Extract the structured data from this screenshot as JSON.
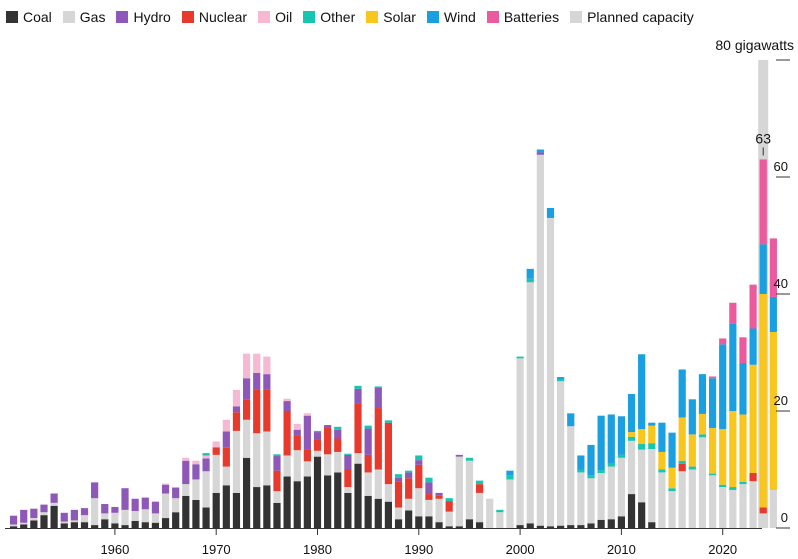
{
  "legend": [
    {
      "key": "coal",
      "label": "Coal",
      "color": "#333333"
    },
    {
      "key": "gas",
      "label": "Gas",
      "color": "#d6d6d6"
    },
    {
      "key": "hydro",
      "label": "Hydro",
      "color": "#8e58b8"
    },
    {
      "key": "nuclear",
      "label": "Nuclear",
      "color": "#e8392d"
    },
    {
      "key": "oil",
      "label": "Oil",
      "color": "#f6b8d3"
    },
    {
      "key": "other",
      "label": "Other",
      "color": "#16c6b0"
    },
    {
      "key": "solar",
      "label": "Solar",
      "color": "#f8c61d"
    },
    {
      "key": "wind",
      "label": "Wind",
      "color": "#1a9fe0"
    },
    {
      "key": "batteries",
      "label": "Batteries",
      "color": "#ea5a9c"
    },
    {
      "key": "planned",
      "label": "Planned capacity",
      "color": "#d6d6d6"
    }
  ],
  "chart_data": {
    "type": "bar",
    "stacked": true,
    "unit_label": "80 gigawatts",
    "annotation": {
      "label": "63",
      "year": 2024
    },
    "y_ticks": [
      "0",
      "20",
      "40",
      "60"
    ],
    "x_ticks": [
      "1960",
      "1970",
      "1980",
      "1990",
      "2000",
      "2010",
      "2020"
    ],
    "ylim": [
      0,
      80
    ],
    "xlim": [
      1950,
      2025
    ],
    "grid": false,
    "legend_position": "top",
    "series_order": [
      "coal",
      "gas",
      "nuclear",
      "hydro",
      "oil",
      "other",
      "solar",
      "wind",
      "batteries"
    ],
    "colors": {
      "coal": "#333333",
      "gas": "#d6d6d6",
      "hydro": "#8e58b8",
      "nuclear": "#e8392d",
      "oil": "#f6b8d3",
      "other": "#16c6b0",
      "solar": "#f8c61d",
      "wind": "#1a9fe0",
      "batteries": "#ea5a9c",
      "planned": "#d6d6d6"
    },
    "years": [
      {
        "year": 1950,
        "coal": 0.3,
        "gas": 0.3,
        "hydro": 1.5
      },
      {
        "year": 1951,
        "coal": 0.6,
        "gas": 0.3,
        "hydro": 2.2
      },
      {
        "year": 1952,
        "coal": 1.3,
        "gas": 0.4,
        "hydro": 1.6
      },
      {
        "year": 1953,
        "coal": 2.2,
        "gas": 0.5,
        "hydro": 1.3
      },
      {
        "year": 1954,
        "coal": 3.8,
        "gas": 0.5,
        "hydro": 1.6
      },
      {
        "year": 1955,
        "coal": 0.8,
        "gas": 0.3,
        "hydro": 1.5
      },
      {
        "year": 1956,
        "coal": 1.0,
        "gas": 0.3,
        "hydro": 1.8
      },
      {
        "year": 1957,
        "coal": 1.0,
        "gas": 1.2,
        "hydro": 1.2
      },
      {
        "year": 1958,
        "coal": 0.5,
        "gas": 4.6,
        "hydro": 2.7
      },
      {
        "year": 1959,
        "coal": 1.5,
        "gas": 1.0,
        "hydro": 1.6
      },
      {
        "year": 1960,
        "coal": 0.8,
        "gas": 1.8,
        "hydro": 1.0
      },
      {
        "year": 1961,
        "coal": 0.5,
        "gas": 2.6,
        "hydro": 3.7
      },
      {
        "year": 1962,
        "coal": 1.2,
        "gas": 1.7,
        "hydro": 2.1
      },
      {
        "year": 1963,
        "coal": 1.0,
        "gas": 2.2,
        "hydro": 2.0
      },
      {
        "year": 1964,
        "coal": 0.9,
        "gas": 1.6,
        "hydro": 2.0
      },
      {
        "year": 1965,
        "coal": 1.7,
        "gas": 4.2,
        "hydro": 1.5,
        "oil": 0.2
      },
      {
        "year": 1966,
        "coal": 2.7,
        "gas": 2.4,
        "hydro": 1.8,
        "oil": 0.1
      },
      {
        "year": 1967,
        "coal": 5.5,
        "gas": 2.0,
        "hydro": 4.0,
        "oil": 0.5
      },
      {
        "year": 1968,
        "coal": 4.8,
        "gas": 3.5,
        "hydro": 2.6,
        "oil": 0.6
      },
      {
        "year": 1969,
        "coal": 3.5,
        "gas": 6.2,
        "hydro": 2.2,
        "oil": 0.5,
        "other": 0.4
      },
      {
        "year": 1970,
        "coal": 6.0,
        "gas": 6.5,
        "nuclear": 1.3,
        "oil": 1.0
      },
      {
        "year": 1971,
        "coal": 7.3,
        "gas": 3.2,
        "nuclear": 3.2,
        "hydro": 2.8,
        "oil": 2.0
      },
      {
        "year": 1972,
        "coal": 6.0,
        "gas": 10.6,
        "nuclear": 3.2,
        "hydro": 1.0,
        "oil": 2.8
      },
      {
        "year": 1973,
        "coal": 12.0,
        "gas": 6.5,
        "nuclear": 3.5,
        "hydro": 3.6,
        "oil": 4.2
      },
      {
        "year": 1974,
        "coal": 7.0,
        "gas": 9.2,
        "nuclear": 7.5,
        "hydro": 2.8,
        "oil": 3.3
      },
      {
        "year": 1975,
        "coal": 7.3,
        "gas": 9.2,
        "nuclear": 7.2,
        "hydro": 2.6,
        "oil": 3.0
      },
      {
        "year": 1976,
        "coal": 4.3,
        "gas": 2.0,
        "nuclear": 3.5,
        "hydro": 2.5,
        "other": 0.3
      },
      {
        "year": 1977,
        "coal": 8.8,
        "gas": 3.6,
        "nuclear": 7.6,
        "hydro": 1.7,
        "oil": 0.4
      },
      {
        "year": 1978,
        "coal": 8.0,
        "gas": 5.3,
        "nuclear": 2.5,
        "hydro": 1.0,
        "oil": 1.0
      },
      {
        "year": 1979,
        "coal": 8.8,
        "gas": 2.6,
        "nuclear": 2.0,
        "hydro": 5.8,
        "oil": 0.4
      },
      {
        "year": 1980,
        "coal": 12.2,
        "gas": 1.0,
        "nuclear": 2.0,
        "hydro": 1.2,
        "other": 0.2
      },
      {
        "year": 1981,
        "coal": 9.0,
        "gas": 3.6,
        "nuclear": 4.5,
        "hydro": 0.5
      },
      {
        "year": 1982,
        "coal": 9.5,
        "gas": 3.5,
        "nuclear": 2.3,
        "hydro": 1.5,
        "other": 0.5
      },
      {
        "year": 1983,
        "coal": 6.0,
        "gas": 1.0,
        "nuclear": 3.0,
        "hydro": 2.5,
        "other": 0.2
      },
      {
        "year": 1984,
        "coal": 11.0,
        "gas": 1.8,
        "nuclear": 8.5,
        "hydro": 2.5,
        "other": 0.5
      },
      {
        "year": 1985,
        "coal": 5.5,
        "gas": 4.0,
        "nuclear": 3.0,
        "hydro": 4.5,
        "other": 0.5
      },
      {
        "year": 1986,
        "coal": 5.0,
        "gas": 5.0,
        "nuclear": 10.5,
        "hydro": 3.5,
        "other": 0.2
      },
      {
        "year": 1987,
        "coal": 4.5,
        "gas": 3.0,
        "nuclear": 10.5,
        "other": 0.4
      },
      {
        "year": 1988,
        "coal": 1.5,
        "gas": 2.0,
        "nuclear": 4.5,
        "hydro": 0.6,
        "other": 0.6
      },
      {
        "year": 1989,
        "coal": 3.0,
        "gas": 2.0,
        "nuclear": 3.5,
        "hydro": 1.0,
        "other": 0.3
      },
      {
        "year": 1990,
        "coal": 2.0,
        "gas": 4.8,
        "nuclear": 4.0,
        "hydro": 0.8,
        "other": 0.8
      },
      {
        "year": 1991,
        "coal": 2.0,
        "gas": 2.8,
        "nuclear": 1.0,
        "hydro": 2.0,
        "other": 0.8
      },
      {
        "year": 1992,
        "coal": 1.0,
        "gas": 4.0,
        "nuclear": 0.5,
        "hydro": 0.5
      },
      {
        "year": 1993,
        "coal": 0.3,
        "gas": 2.5,
        "nuclear": 1.8,
        "other": 0.5
      },
      {
        "year": 1994,
        "coal": 0.3,
        "gas": 11.9,
        "hydro": 0.3
      },
      {
        "year": 1995,
        "coal": 1.5,
        "gas": 10.0,
        "other": 0.5
      },
      {
        "year": 1996,
        "coal": 1.0,
        "gas": 5.0,
        "nuclear": 1.5,
        "other": 0.6
      },
      {
        "year": 1997,
        "gas": 5.0
      },
      {
        "year": 1998,
        "gas": 2.7,
        "other": 0.4
      },
      {
        "year": 1999,
        "gas": 8.3,
        "other": 0.7,
        "wind": 0.8
      },
      {
        "year": 2000,
        "coal": 0.5,
        "gas": 28.5,
        "other": 0.3
      },
      {
        "year": 2001,
        "coal": 0.8,
        "gas": 41.2,
        "other": 0.6,
        "wind": 1.7
      },
      {
        "year": 2002,
        "coal": 0.4,
        "gas": 63.4,
        "hydro": 0.4,
        "wind": 0.5
      },
      {
        "year": 2003,
        "coal": 0.3,
        "gas": 52.7,
        "wind": 1.7
      },
      {
        "year": 2004,
        "coal": 0.4,
        "gas": 24.7,
        "other": 0.3,
        "wind": 0.4
      },
      {
        "year": 2005,
        "coal": 0.5,
        "gas": 16.9,
        "wind": 2.2
      },
      {
        "year": 2006,
        "coal": 0.5,
        "gas": 9.0,
        "other": 0.5,
        "wind": 2.4
      },
      {
        "year": 2007,
        "coal": 0.8,
        "gas": 7.7,
        "other": 0.5,
        "wind": 5.2
      },
      {
        "year": 2008,
        "coal": 1.4,
        "gas": 8.0,
        "other": 0.5,
        "wind": 9.3
      },
      {
        "year": 2009,
        "coal": 1.5,
        "gas": 9.0,
        "other": 0.5,
        "wind": 8.4
      },
      {
        "year": 2010,
        "coal": 2.0,
        "gas": 10.0,
        "other": 0.5,
        "wind": 6.6
      },
      {
        "year": 2011,
        "coal": 5.8,
        "gas": 9.1,
        "solar": 0.8,
        "other": 0.7,
        "wind": 6.5
      },
      {
        "year": 2012,
        "coal": 4.4,
        "gas": 9.0,
        "solar": 2.5,
        "other": 1.0,
        "wind": 12.8
      },
      {
        "year": 2013,
        "coal": 1.0,
        "gas": 12.5,
        "solar": 3.0,
        "other": 1.0,
        "wind": 0.5
      },
      {
        "year": 2014,
        "gas": 9.5,
        "solar": 3.0,
        "other": 0.5,
        "wind": 5.0
      },
      {
        "year": 2015,
        "gas": 6.3,
        "solar": 3.5,
        "other": 0.5,
        "wind": 6.0
      },
      {
        "year": 2016,
        "gas": 9.7,
        "nuclear": 1.3,
        "solar": 7.4,
        "other": 0.5,
        "wind": 8.2
      },
      {
        "year": 2017,
        "gas": 10.0,
        "solar": 5.5,
        "other": 0.5,
        "wind": 6.0
      },
      {
        "year": 2018,
        "gas": 15.5,
        "solar": 3.5,
        "other": 0.5,
        "wind": 6.8
      },
      {
        "year": 2019,
        "gas": 9.0,
        "solar": 7.8,
        "other": 0.3,
        "wind": 8.5,
        "batteries": 0.3
      },
      {
        "year": 2020,
        "gas": 7.0,
        "solar": 9.5,
        "other": 0.4,
        "wind": 14.5,
        "batteries": 1.0
      },
      {
        "year": 2021,
        "gas": 6.5,
        "solar": 13.0,
        "other": 0.5,
        "wind": 15.0,
        "batteries": 3.5
      },
      {
        "year": 2022,
        "gas": 7.5,
        "solar": 11.5,
        "other": 0.4,
        "wind": 8.8,
        "batteries": 4.4
      },
      {
        "year": 2023,
        "gas": 8.0,
        "nuclear": 1.4,
        "solar": 18.5,
        "wind": 6.2,
        "batteries": 7.5
      },
      {
        "year": 2024,
        "gas": 2.5,
        "nuclear": 1.0,
        "solar": 36.5,
        "wind": 8.5,
        "batteries": 14.5
      },
      {
        "year": 2025,
        "gas": 6.5,
        "solar": 27.0,
        "wind": 6.0,
        "batteries": 10.0
      }
    ],
    "planned": [
      {
        "year": 2024,
        "value": 80
      }
    ]
  }
}
